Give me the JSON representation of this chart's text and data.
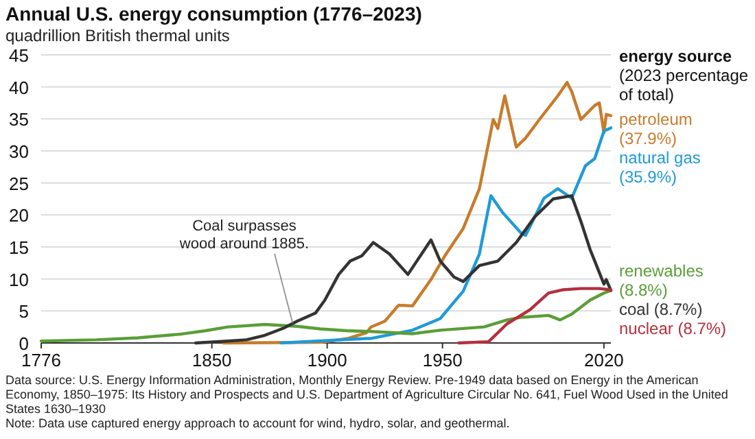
{
  "chart_data": {
    "type": "line",
    "title": "Annual U.S. energy consumption (1776–2023)",
    "subtitle": "quadrillion British thermal units",
    "legend_title": "energy source (2023 percentage of total)",
    "legend": "right",
    "grid": "y",
    "xlim": [
      1776,
      2023
    ],
    "xticks": [
      1776,
      1850,
      1900,
      1950,
      2020
    ],
    "ylim": [
      0,
      45
    ],
    "yticks": [
      0,
      5,
      10,
      15,
      20,
      25,
      30,
      35,
      40,
      45
    ],
    "series": [
      {
        "name": "petroleum (37.9%)",
        "color": "#c77c2b",
        "x": [
          1855,
          1897,
          1909,
          1917,
          1919,
          1925,
          1931,
          1937,
          1945,
          1951,
          1959,
          1966,
          1972,
          1974,
          1977,
          1982,
          1986,
          1992,
          2000,
          2004,
          2006,
          2010,
          2016,
          2018,
          2020,
          2021,
          2023
        ],
        "values": [
          0,
          0.1,
          0.7,
          1.6,
          2.5,
          3.4,
          5.9,
          5.8,
          9.9,
          13.6,
          17.9,
          24.1,
          34.9,
          33.5,
          38.6,
          30.6,
          32,
          34.9,
          38.6,
          40.7,
          39.3,
          34.9,
          37.1,
          37.5,
          32.8,
          35.7,
          35.5
        ]
      },
      {
        "name": "natural gas (35.9%)",
        "color": "#1f9bd7",
        "x": [
          1880,
          1917,
          1919,
          1937,
          1949,
          1959,
          1966,
          1971,
          1976,
          1984,
          1986,
          1994,
          2000,
          2006,
          2012,
          2016,
          2020,
          2023
        ],
        "values": [
          0,
          0.7,
          0.7,
          2,
          3.8,
          8.1,
          13.9,
          23,
          20.4,
          17.2,
          16.8,
          22.6,
          24.1,
          22.6,
          27.7,
          28.8,
          33.1,
          33.6
        ]
      },
      {
        "name": "renewables (8.8%)",
        "color": "#5a9e37",
        "x": [
          1776,
          1800,
          1818,
          1837,
          1847,
          1857,
          1873,
          1887,
          1897,
          1909,
          1919,
          1937,
          1949,
          1968,
          1978,
          1984,
          1996,
          2001,
          2006,
          2014,
          2020,
          2023
        ],
        "values": [
          0.3,
          0.5,
          0.8,
          1.4,
          1.9,
          2.5,
          2.9,
          2.6,
          2.2,
          1.9,
          1.8,
          1.45,
          2,
          2.5,
          3.6,
          4,
          4.3,
          3.6,
          4.5,
          6.7,
          7.8,
          8.2
        ]
      },
      {
        "name": "coal (8.7%)",
        "color": "#333333",
        "x": [
          1843,
          1857,
          1865,
          1873,
          1881,
          1887,
          1895,
          1899,
          1905,
          1910,
          1915,
          1920,
          1927,
          1935,
          1945,
          1949,
          1955,
          1959,
          1966,
          1974,
          1982,
          1990,
          1998,
          2006,
          2010,
          2014,
          2018,
          2020,
          2021,
          2023
        ],
        "values": [
          0,
          0.3,
          0.5,
          1.2,
          2.3,
          3.4,
          4.7,
          6.7,
          10.7,
          12.8,
          13.6,
          15.7,
          13.9,
          10.7,
          16.1,
          12.8,
          10.3,
          9.6,
          12.1,
          12.8,
          15.7,
          19.7,
          22.5,
          23,
          19,
          14.6,
          11,
          9.2,
          9.9,
          8.2
        ]
      },
      {
        "name": "nuclear (8.7%)",
        "color": "#b3303e",
        "x": [
          1957,
          1970,
          1978,
          1988,
          1996,
          2002,
          2010,
          2018,
          2023
        ],
        "values": [
          0,
          0.2,
          3,
          5.2,
          7.8,
          8.3,
          8.5,
          8.5,
          8.3
        ]
      }
    ],
    "annotations": [
      {
        "text": "Coal surpasses wood around 1885.",
        "x": 1885,
        "y": 2.7
      },
      "Data source: U.S. Energy Information Administration, Monthly Energy Review. Pre-1949 data based on Energy in the American Economy, 1850–1975: Its History and Prospects and U.S. Department of Agriculture Circular No. 641, Fuel Wood Used in the United States 1630–1930",
      "Note: Data use captured energy approach to account for wind, hydro, solar, and geothermal."
    ]
  }
}
